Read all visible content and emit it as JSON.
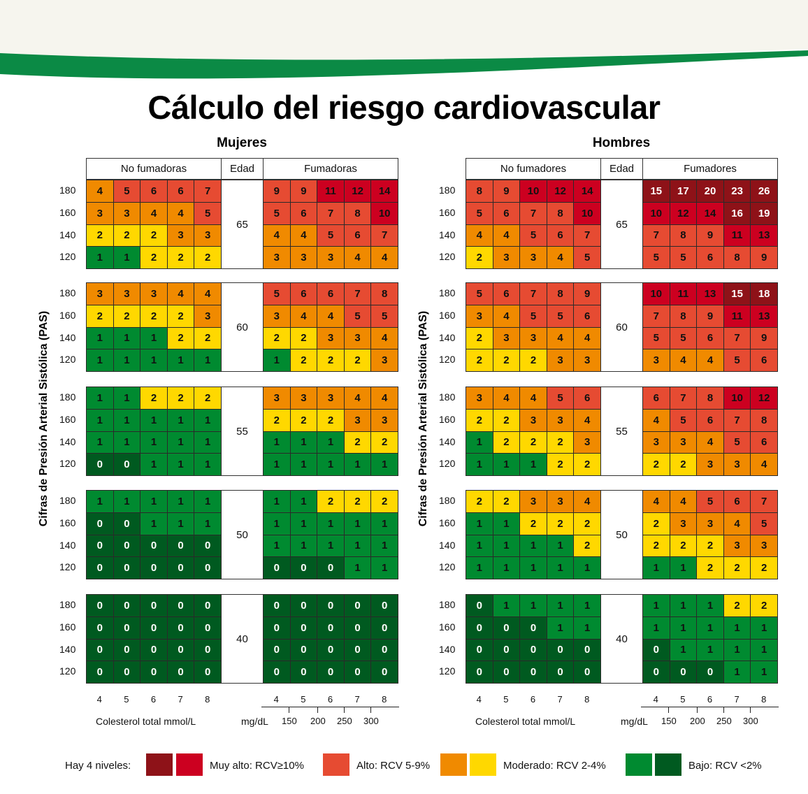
{
  "title": "Cálculo del riesgo cardiovascular",
  "colors": {
    "very_high_dark": "#8e1218",
    "very_high": "#cc0020",
    "high": "#e64b32",
    "moderate_orange": "#f08a00",
    "moderate_yellow": "#ffd800",
    "low": "#008a30",
    "low_dark": "#005a20",
    "banner_green": "#0b8a45",
    "banner_bg": "#f6f5ee"
  },
  "y_axis_label": "Cifras de Presión Arterial Sistólica (PAS)",
  "edad_label": "Edad",
  "axis": {
    "mmol_label": "Colesterol total mmol/L",
    "mgdl_label": "mg/dL",
    "mmol_ticks": [
      "4",
      "5",
      "6",
      "7",
      "8"
    ],
    "mgdl_ticks": [
      "150",
      "200",
      "250",
      "300"
    ]
  },
  "legend": {
    "intro": "Hay 4 niveles:",
    "items": [
      {
        "label": "Muy alto: RCV≥10%"
      },
      {
        "label": "Alto: RCV 5-9%"
      },
      {
        "label": "Moderado: RCV 2-4%"
      },
      {
        "label": "Bajo: RCV <2%"
      }
    ]
  },
  "chart_data": {
    "type": "heatmap",
    "title": "Cálculo del riesgo cardiovascular",
    "xlabel": "Colesterol total mmol/L",
    "ylabel": "Cifras de Presión Arterial Sistólica (PAS)",
    "x_categories": [
      "4",
      "5",
      "6",
      "7",
      "8"
    ],
    "y_categories": [
      "180",
      "160",
      "140",
      "120"
    ],
    "panels": [
      {
        "title": "Mujeres",
        "groups": [
          "No fumadoras",
          "Fumadoras"
        ],
        "ages": [
          {
            "age": "65",
            "nonsmoker": [
              [
                4,
                5,
                6,
                6,
                7
              ],
              [
                3,
                3,
                4,
                4,
                5
              ],
              [
                2,
                2,
                2,
                3,
                3
              ],
              [
                1,
                1,
                2,
                2,
                2
              ]
            ],
            "smoker": [
              [
                9,
                9,
                11,
                12,
                14
              ],
              [
                5,
                6,
                7,
                8,
                10
              ],
              [
                4,
                4,
                5,
                6,
                7
              ],
              [
                3,
                3,
                3,
                4,
                4
              ]
            ]
          },
          {
            "age": "60",
            "nonsmoker": [
              [
                3,
                3,
                3,
                4,
                4
              ],
              [
                2,
                2,
                2,
                2,
                3
              ],
              [
                1,
                1,
                1,
                2,
                2
              ],
              [
                1,
                1,
                1,
                1,
                1
              ]
            ],
            "smoker": [
              [
                5,
                6,
                6,
                7,
                8
              ],
              [
                3,
                4,
                4,
                5,
                5
              ],
              [
                2,
                2,
                3,
                3,
                4
              ],
              [
                1,
                2,
                2,
                2,
                3
              ]
            ]
          },
          {
            "age": "55",
            "nonsmoker": [
              [
                1,
                1,
                2,
                2,
                2
              ],
              [
                1,
                1,
                1,
                1,
                1
              ],
              [
                1,
                1,
                1,
                1,
                1
              ],
              [
                0,
                0,
                1,
                1,
                1
              ]
            ],
            "smoker": [
              [
                3,
                3,
                3,
                4,
                4
              ],
              [
                2,
                2,
                2,
                3,
                3
              ],
              [
                1,
                1,
                1,
                2,
                2
              ],
              [
                1,
                1,
                1,
                1,
                1
              ]
            ]
          },
          {
            "age": "50",
            "nonsmoker": [
              [
                1,
                1,
                1,
                1,
                1
              ],
              [
                0,
                0,
                1,
                1,
                1
              ],
              [
                0,
                0,
                0,
                0,
                0
              ],
              [
                0,
                0,
                0,
                0,
                0
              ]
            ],
            "smoker": [
              [
                1,
                1,
                2,
                2,
                2
              ],
              [
                1,
                1,
                1,
                1,
                1
              ],
              [
                1,
                1,
                1,
                1,
                1
              ],
              [
                0,
                0,
                0,
                1,
                1
              ]
            ]
          },
          {
            "age": "40",
            "nonsmoker": [
              [
                0,
                0,
                0,
                0,
                0
              ],
              [
                0,
                0,
                0,
                0,
                0
              ],
              [
                0,
                0,
                0,
                0,
                0
              ],
              [
                0,
                0,
                0,
                0,
                0
              ]
            ],
            "smoker": [
              [
                0,
                0,
                0,
                0,
                0
              ],
              [
                0,
                0,
                0,
                0,
                0
              ],
              [
                0,
                0,
                0,
                0,
                0
              ],
              [
                0,
                0,
                0,
                0,
                0
              ]
            ]
          }
        ]
      },
      {
        "title": "Hombres",
        "groups": [
          "No fumadores",
          "Fumadores"
        ],
        "ages": [
          {
            "age": "65",
            "nonsmoker": [
              [
                8,
                9,
                10,
                12,
                14
              ],
              [
                5,
                6,
                7,
                8,
                10
              ],
              [
                4,
                4,
                5,
                6,
                7
              ],
              [
                2,
                3,
                3,
                4,
                5
              ]
            ],
            "smoker": [
              [
                15,
                17,
                20,
                23,
                26
              ],
              [
                10,
                12,
                14,
                16,
                19
              ],
              [
                7,
                8,
                9,
                11,
                13
              ],
              [
                5,
                5,
                6,
                8,
                9
              ]
            ]
          },
          {
            "age": "60",
            "nonsmoker": [
              [
                5,
                6,
                7,
                8,
                9
              ],
              [
                3,
                4,
                5,
                5,
                6
              ],
              [
                2,
                3,
                3,
                4,
                4
              ],
              [
                2,
                2,
                2,
                3,
                3
              ]
            ],
            "smoker": [
              [
                10,
                11,
                13,
                15,
                18
              ],
              [
                7,
                8,
                9,
                11,
                13
              ],
              [
                5,
                5,
                6,
                7,
                9
              ],
              [
                3,
                4,
                4,
                5,
                6
              ]
            ]
          },
          {
            "age": "55",
            "nonsmoker": [
              [
                3,
                4,
                4,
                5,
                6
              ],
              [
                2,
                2,
                3,
                3,
                4
              ],
              [
                1,
                2,
                2,
                2,
                3
              ],
              [
                1,
                1,
                1,
                2,
                2
              ]
            ],
            "smoker": [
              [
                6,
                7,
                8,
                10,
                12
              ],
              [
                4,
                5,
                6,
                7,
                8
              ],
              [
                3,
                3,
                4,
                5,
                6
              ],
              [
                2,
                2,
                3,
                3,
                4
              ]
            ]
          },
          {
            "age": "50",
            "nonsmoker": [
              [
                2,
                2,
                3,
                3,
                4
              ],
              [
                1,
                1,
                2,
                2,
                2
              ],
              [
                1,
                1,
                1,
                1,
                2
              ],
              [
                1,
                1,
                1,
                1,
                1
              ]
            ],
            "smoker": [
              [
                4,
                4,
                5,
                6,
                7
              ],
              [
                2,
                3,
                3,
                4,
                5
              ],
              [
                2,
                2,
                2,
                3,
                3
              ],
              [
                1,
                1,
                2,
                2,
                2
              ]
            ]
          },
          {
            "age": "40",
            "nonsmoker": [
              [
                0,
                1,
                1,
                1,
                1
              ],
              [
                0,
                0,
                0,
                1,
                1
              ],
              [
                0,
                0,
                0,
                0,
                0
              ],
              [
                0,
                0,
                0,
                0,
                0
              ]
            ],
            "smoker": [
              [
                1,
                1,
                1,
                2,
                2
              ],
              [
                1,
                1,
                1,
                1,
                1
              ],
              [
                0,
                1,
                1,
                1,
                1
              ],
              [
                0,
                0,
                0,
                1,
                1
              ]
            ]
          }
        ]
      }
    ],
    "risk_levels": [
      {
        "label": "Muy alto: RCV≥10%",
        "min": 10
      },
      {
        "label": "Alto: RCV 5-9%",
        "min": 5,
        "max": 9
      },
      {
        "label": "Moderado: RCV 2-4%",
        "min": 2,
        "max": 4
      },
      {
        "label": "Bajo: RCV <2%",
        "max": 1
      }
    ]
  }
}
